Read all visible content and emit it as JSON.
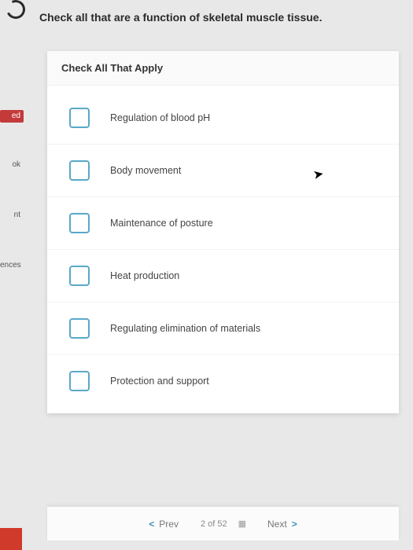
{
  "question": "Check all that are a function of skeletal muscle tissue.",
  "card": {
    "header": "Check All That Apply",
    "options": [
      {
        "label": "Regulation of blood pH"
      },
      {
        "label": "Body movement"
      },
      {
        "label": "Maintenance of posture"
      },
      {
        "label": "Heat production"
      },
      {
        "label": "Regulating elimination of materials"
      },
      {
        "label": "Protection and support"
      }
    ]
  },
  "sidebar": {
    "items": [
      "ed",
      "ok",
      "nt",
      "ences"
    ]
  },
  "nav": {
    "prev": "Prev",
    "next": "Next",
    "position": "2 of 52"
  },
  "colors": {
    "checkbox_border": "#5aa8c8",
    "accent_red": "#d03a2a",
    "nav_chevron": "#3b8fb5",
    "background": "#e8e8e8",
    "card_bg": "#ffffff"
  }
}
